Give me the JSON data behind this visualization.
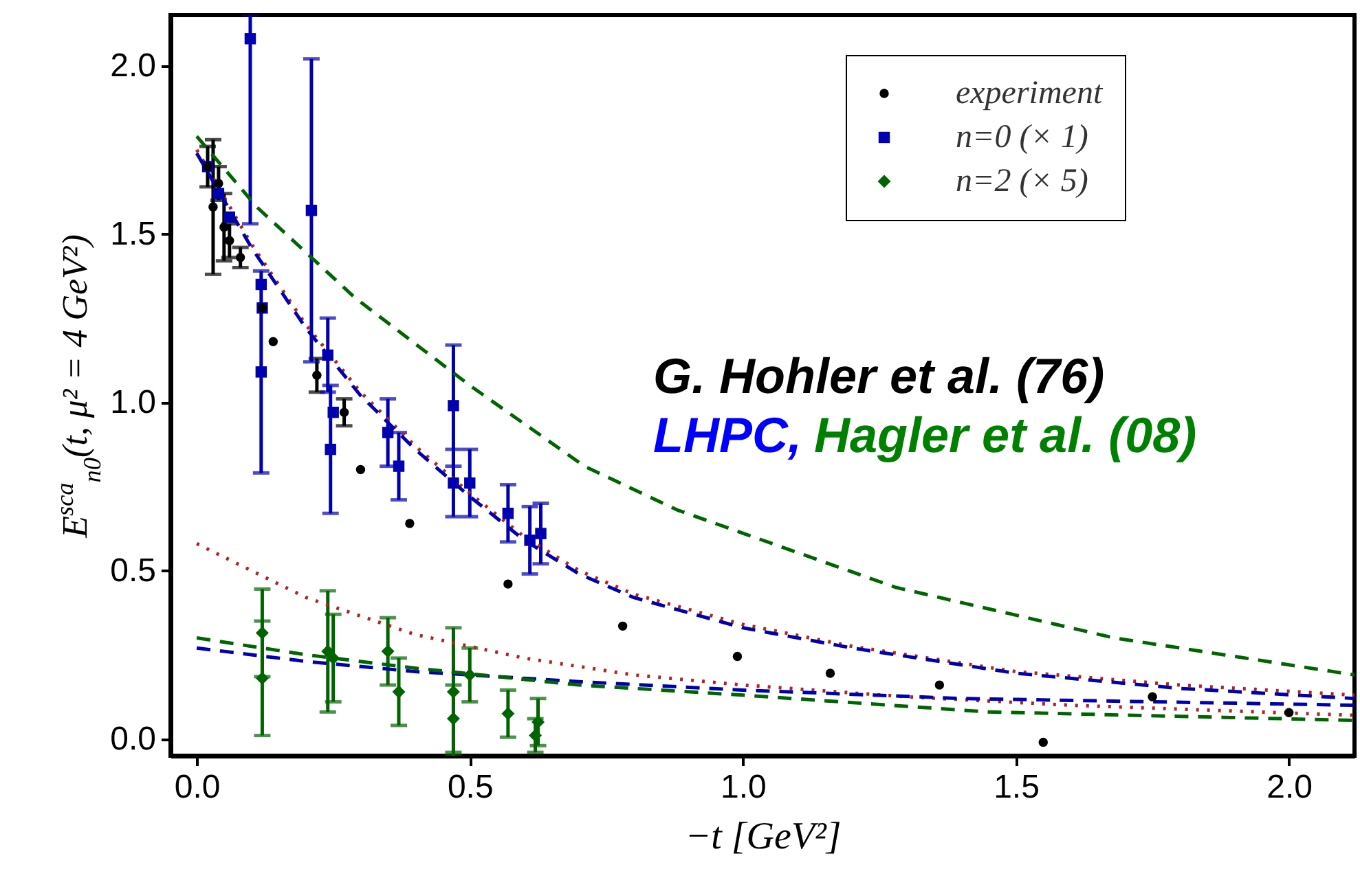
{
  "chart_data": {
    "type": "scatter",
    "xlabel": "−t [GeV²]",
    "ylabel": "E$^{sca}$$_{n0}$(t, μ² = 4 GeV²)",
    "xlim": [
      -0.048,
      2.12
    ],
    "ylim": [
      -0.05,
      2.15
    ],
    "xticks": [
      {
        "value": 0,
        "label": "0.0"
      },
      {
        "value": 0.5,
        "label": "0.5"
      },
      {
        "value": 1,
        "label": "1.0"
      },
      {
        "value": 1.5,
        "label": "1.5"
      },
      {
        "value": 2,
        "label": "2.0"
      }
    ],
    "yticks": [
      {
        "value": 0,
        "label": "0.0"
      },
      {
        "value": 0.5,
        "label": "0.5"
      },
      {
        "value": 1,
        "label": "1.0"
      },
      {
        "value": 1.5,
        "label": "1.5"
      },
      {
        "value": 2,
        "label": "2.0"
      }
    ],
    "grid": false,
    "legend": "top right",
    "annotations": [
      "G. Hohler et al. (76)",
      "LHPC,",
      "Hagler et al. (08)"
    ],
    "series": [
      {
        "name": "experiment",
        "marker": "circle",
        "color": "#000000",
        "x": [
          0.02,
          0.03,
          0.04,
          0.05,
          0.06,
          0.08,
          0.12,
          0.14,
          0.22,
          0.27,
          0.3,
          0.39,
          0.57,
          0.78,
          0.99,
          1.16,
          1.36,
          1.55,
          1.75,
          2.0
        ],
        "values": [
          1.7,
          1.58,
          1.65,
          1.52,
          1.48,
          1.43,
          1.28,
          1.18,
          1.08,
          0.97,
          0.8,
          0.64,
          0.46,
          0.335,
          0.245,
          0.195,
          0.16,
          -0.01,
          0.125,
          0.078
        ],
        "errors": [
          0.06,
          0.2,
          0.05,
          0.1,
          0.05,
          0.03,
          null,
          null,
          0.05,
          0.04,
          null,
          null,
          null,
          null,
          null,
          null,
          null,
          null,
          null,
          null
        ]
      },
      {
        "name": "n=0 (× 1)",
        "marker": "square",
        "color": "#0000b0",
        "x": [
          0.02,
          0.04,
          0.06,
          0.098,
          0.118,
          0.12,
          0.118,
          0.21,
          0.24,
          0.245,
          0.25,
          0.35,
          0.37,
          0.47,
          0.47,
          0.5,
          0.57,
          0.61,
          0.63
        ],
        "values": [
          1.7,
          1.62,
          1.55,
          2.08,
          1.35,
          1.28,
          1.09,
          1.57,
          1.14,
          0.86,
          0.97,
          0.91,
          0.81,
          0.99,
          0.76,
          0.76,
          0.67,
          0.59,
          0.61
        ],
        "errors": [
          null,
          null,
          null,
          [
            1.53,
            2.15
          ],
          null,
          null,
          0.3,
          0.45,
          0.11,
          0.19,
          null,
          0.1,
          0.1,
          0.18,
          0.1,
          0.1,
          0.085,
          0.1,
          0.09
        ]
      },
      {
        "name": "n=2 (× 5)",
        "marker": "diamond",
        "color": "#006400",
        "x": [
          0.12,
          0.12,
          0.24,
          0.25,
          0.35,
          0.37,
          0.47,
          0.47,
          0.5,
          0.57,
          0.62,
          0.625
        ],
        "values": [
          0.315,
          0.18,
          0.26,
          0.24,
          0.26,
          0.14,
          0.14,
          0.06,
          0.19,
          0.075,
          0.01,
          0.05
        ],
        "errors": [
          0.13,
          0.17,
          0.18,
          0.13,
          0.1,
          0.1,
          0.19,
          0.1,
          0.08,
          0.07,
          0.05,
          0.07
        ]
      },
      {
        "type": "line",
        "line_style": "dotted",
        "color": "#b22222",
        "x": [
          0,
          0.1,
          0.2,
          0.3,
          0.4,
          0.5,
          0.6,
          0.7,
          0.8,
          1.0,
          1.2,
          1.5,
          1.8,
          2.12
        ],
        "values": [
          1.75,
          1.47,
          1.23,
          1.03,
          0.87,
          0.73,
          0.6,
          0.5,
          0.43,
          0.34,
          0.275,
          0.2,
          0.16,
          0.13
        ]
      },
      {
        "type": "line",
        "line_style": "dashed",
        "color": "#0000b0",
        "x": [
          0,
          0.1,
          0.2,
          0.3,
          0.4,
          0.5,
          0.6,
          0.7,
          0.8,
          1.0,
          1.2,
          1.5,
          1.8,
          2.12
        ],
        "values": [
          1.74,
          1.46,
          1.22,
          1.02,
          0.86,
          0.72,
          0.59,
          0.49,
          0.42,
          0.33,
          0.27,
          0.195,
          0.15,
          0.12
        ]
      },
      {
        "type": "line",
        "line_style": "dashed",
        "color": "#006400",
        "x": [
          0,
          0.11,
          0.29,
          0.5,
          0.71,
          0.88,
          1.28,
          1.68,
          2.12
        ],
        "values": [
          1.79,
          1.58,
          1.31,
          1.05,
          0.81,
          0.68,
          0.45,
          0.3,
          0.19
        ]
      },
      {
        "type": "line",
        "line_style": "dotted",
        "color": "#b22222",
        "x": [
          0,
          0.2,
          0.4,
          0.6,
          0.8,
          1.0,
          1.3,
          1.6,
          2.12
        ],
        "values": [
          0.58,
          0.42,
          0.31,
          0.24,
          0.19,
          0.16,
          0.125,
          0.1,
          0.07
        ]
      },
      {
        "type": "line",
        "line_style": "dashed",
        "color": "#0000b0",
        "x": [
          0,
          0.2,
          0.4,
          0.7,
          1.0,
          1.4,
          2.12
        ],
        "values": [
          0.27,
          0.23,
          0.2,
          0.17,
          0.145,
          0.12,
          0.1
        ]
      },
      {
        "type": "line",
        "line_style": "dashed",
        "color": "#006400",
        "x": [
          0,
          0.2,
          0.4,
          0.7,
          1.0,
          1.45,
          2.12
        ],
        "values": [
          0.3,
          0.25,
          0.21,
          0.16,
          0.13,
          0.08,
          0.055
        ]
      }
    ]
  }
}
